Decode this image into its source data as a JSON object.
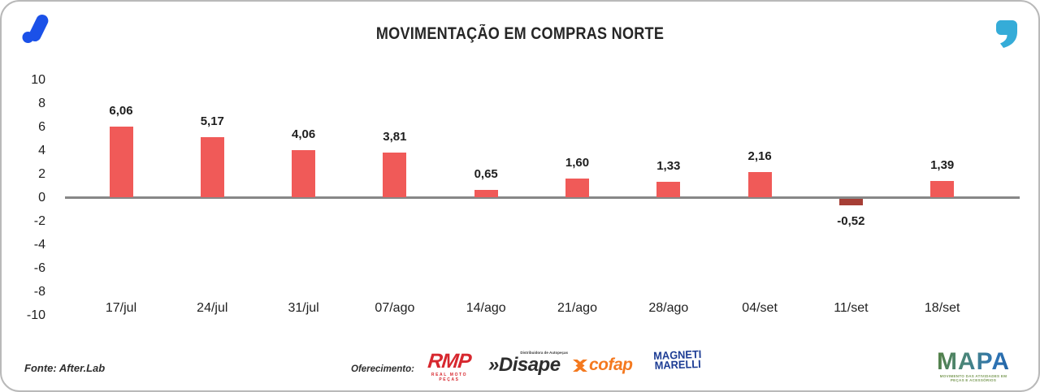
{
  "brand": {
    "logo_blue": "#1b51e8",
    "quote_teal": "#35acd8"
  },
  "chart_data": {
    "type": "bar",
    "title": "MOVIMENTAÇÃO EM COMPRAS NORTE",
    "categories": [
      "17/jul",
      "24/jul",
      "31/jul",
      "07/ago",
      "14/ago",
      "21/ago",
      "28/ago",
      "04/set",
      "11/set",
      "18/set"
    ],
    "values": [
      6.06,
      5.17,
      4.06,
      3.81,
      0.65,
      1.6,
      1.33,
      2.16,
      -0.52,
      1.39
    ],
    "value_labels": [
      "6,06",
      "5,17",
      "4,06",
      "3,81",
      "0,65",
      "1,60",
      "1,33",
      "2,16",
      "-0,52",
      "1,39"
    ],
    "xlabel": "",
    "ylabel": "",
    "ylim": [
      -10,
      10
    ],
    "yticks": [
      10,
      8,
      6,
      4,
      2,
      0,
      -2,
      -4,
      -6,
      -8,
      -10
    ],
    "grid": false,
    "legend_position": "none",
    "bar_color": "#f05a58",
    "negative_bar_color": "#a63e35",
    "zero_line_color": "#878787"
  },
  "footer": {
    "source": "Fonte: After.Lab",
    "sponsor_label": "Oferecimento:",
    "sponsors": [
      {
        "name": "RMP",
        "subtext": "REAL MOTO PEÇAS",
        "color": "#d7282f"
      },
      {
        "name": "Disape",
        "prefix": "»",
        "subtext": "Distribuidora de Autopeças",
        "color": "#2d2d2d"
      },
      {
        "name": "cofap",
        "color": "#f4791f"
      },
      {
        "name": "MAGNETI MARELLI",
        "line1": "MAGNETI",
        "line2": "MARELLI",
        "color": "#1c3c94"
      }
    ],
    "mapa": {
      "name": "MAPA",
      "subtext": "MOVIMENTO DAS ATIVIDADES EM PEÇAS E ACESSÓRIOS"
    }
  }
}
